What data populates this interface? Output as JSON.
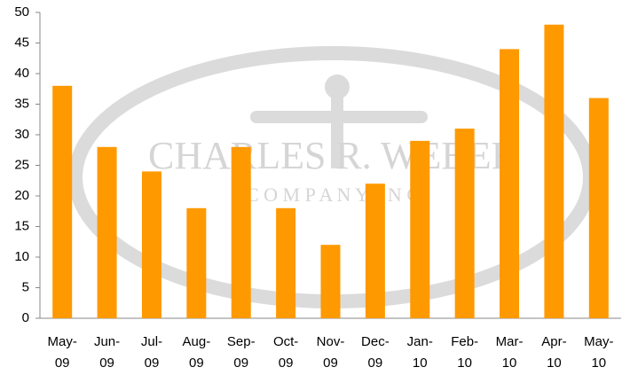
{
  "chart_data": {
    "type": "bar",
    "categories": [
      "May-09",
      "Jun-09",
      "Jul-09",
      "Aug-09",
      "Sep-09",
      "Oct-09",
      "Nov-09",
      "Dec-09",
      "Jan-10",
      "Feb-10",
      "Mar-10",
      "Apr-10",
      "May-10"
    ],
    "values": [
      38,
      28,
      24,
      18,
      28,
      18,
      12,
      22,
      29,
      31,
      44,
      48,
      36
    ],
    "color": "#ff9900",
    "ylim": [
      0,
      50
    ],
    "yticks": [
      0,
      5,
      10,
      15,
      20,
      25,
      30,
      35,
      40,
      45,
      50
    ],
    "grid": false,
    "watermark": {
      "line1": "CHARLES R. WEBER",
      "line2": "C O M P A N Y, I N C"
    }
  }
}
